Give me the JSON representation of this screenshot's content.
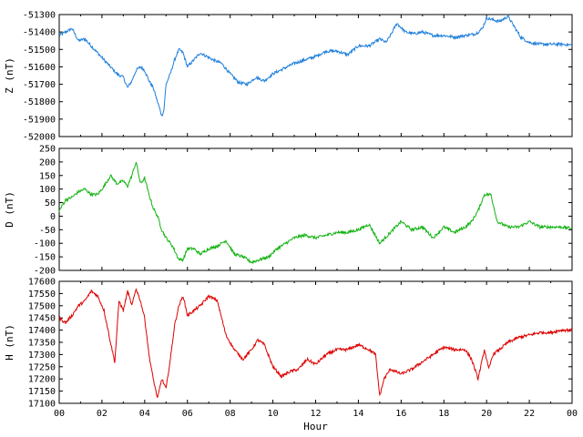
{
  "chart_data": [
    {
      "type": "line",
      "ylabel": "Z (nT)",
      "ylim": [
        -52000,
        -51300
      ],
      "yticks": [
        -51300,
        -51400,
        -51500,
        -51600,
        -51700,
        -51800,
        -51900,
        -52000
      ],
      "color": "#1e7fdc",
      "series": [
        {
          "x": [
            0,
            0.3,
            0.6,
            0.9,
            1.2,
            1.5,
            1.8,
            2.1,
            2.4,
            2.7,
            3.0,
            3.2,
            3.4,
            3.6,
            3.8,
            4.0,
            4.2,
            4.4,
            4.6,
            4.8,
            4.9,
            5.0,
            5.2,
            5.4,
            5.6,
            5.8,
            6.0,
            6.3,
            6.6,
            6.9,
            7.2,
            7.6,
            8.0,
            8.4,
            8.8,
            9.2,
            9.6,
            10.0,
            10.5,
            11.0,
            11.5,
            12.0,
            12.5,
            13.0,
            13.5,
            14.0,
            14.5,
            15.0,
            15.3,
            15.5,
            15.8,
            16.2,
            16.6,
            17.0,
            17.5,
            18.0,
            18.5,
            19.0,
            19.5,
            19.8,
            20.0,
            20.3,
            20.6,
            21.0,
            21.3,
            21.6,
            22.0,
            22.5,
            23.0,
            23.5,
            24.0
          ],
          "y": [
            -51420,
            -51400,
            -51380,
            -51450,
            -51440,
            -51480,
            -51520,
            -51560,
            -51600,
            -51640,
            -51660,
            -51720,
            -51680,
            -51620,
            -51600,
            -51620,
            -51680,
            -51720,
            -51800,
            -51880,
            -51850,
            -51700,
            -51640,
            -51560,
            -51500,
            -51520,
            -51600,
            -51560,
            -51520,
            -51540,
            -51560,
            -51580,
            -51640,
            -51690,
            -51700,
            -51660,
            -51680,
            -51640,
            -51610,
            -51580,
            -51560,
            -51540,
            -51510,
            -51510,
            -51530,
            -51480,
            -51480,
            -51440,
            -51460,
            -51420,
            -51350,
            -51400,
            -51410,
            -51400,
            -51420,
            -51420,
            -51430,
            -51420,
            -51410,
            -51380,
            -51320,
            -51330,
            -51340,
            -51310,
            -51370,
            -51430,
            -51460,
            -51470,
            -51470,
            -51470,
            -51475
          ]
        }
      ]
    },
    {
      "type": "line",
      "ylabel": "D (nT)",
      "ylim": [
        -200,
        250
      ],
      "yticks": [
        250,
        200,
        150,
        100,
        50,
        0,
        -50,
        -100,
        -150,
        -200
      ],
      "color": "#12b312",
      "series": [
        {
          "x": [
            0,
            0.3,
            0.6,
            0.9,
            1.2,
            1.5,
            1.8,
            2.1,
            2.4,
            2.7,
            3.0,
            3.2,
            3.4,
            3.6,
            3.8,
            4.0,
            4.2,
            4.4,
            4.6,
            4.8,
            5.0,
            5.3,
            5.6,
            5.8,
            6.0,
            6.3,
            6.6,
            7.0,
            7.4,
            7.8,
            8.2,
            8.6,
            9.0,
            9.4,
            9.8,
            10.2,
            10.6,
            11.0,
            11.5,
            12.0,
            12.5,
            13.0,
            13.5,
            14.0,
            14.5,
            15.0,
            15.5,
            16.0,
            16.5,
            17.0,
            17.5,
            18.0,
            18.5,
            19.0,
            19.3,
            19.6,
            19.9,
            20.2,
            20.5,
            21.0,
            21.5,
            22.0,
            22.5,
            23.0,
            23.5,
            24.0
          ],
          "y": [
            20,
            60,
            70,
            90,
            100,
            80,
            80,
            110,
            150,
            120,
            130,
            110,
            150,
            200,
            120,
            140,
            80,
            30,
            0,
            -50,
            -80,
            -110,
            -160,
            -160,
            -120,
            -120,
            -140,
            -120,
            -110,
            -90,
            -140,
            -150,
            -170,
            -160,
            -150,
            -120,
            -100,
            -80,
            -70,
            -80,
            -70,
            -60,
            -60,
            -50,
            -30,
            -100,
            -60,
            -20,
            -50,
            -40,
            -80,
            -40,
            -60,
            -40,
            -20,
            20,
            80,
            80,
            -20,
            -40,
            -40,
            -20,
            -40,
            -40,
            -40,
            -45
          ]
        }
      ]
    },
    {
      "type": "line",
      "ylabel": "H (nT)",
      "xlabel": "Hour",
      "ylim": [
        17100,
        17600
      ],
      "yticks": [
        17600,
        17550,
        17500,
        17450,
        17400,
        17350,
        17300,
        17250,
        17200,
        17150,
        17100
      ],
      "xticks": [
        "00",
        "02",
        "04",
        "06",
        "08",
        "10",
        "12",
        "14",
        "16",
        "18",
        "20",
        "22",
        "00"
      ],
      "color": "#dd0000",
      "series": [
        {
          "x": [
            0,
            0.3,
            0.6,
            0.9,
            1.2,
            1.5,
            1.8,
            2.1,
            2.4,
            2.6,
            2.8,
            3.0,
            3.2,
            3.4,
            3.6,
            3.8,
            4.0,
            4.2,
            4.4,
            4.6,
            4.8,
            5.0,
            5.2,
            5.4,
            5.6,
            5.8,
            6.0,
            6.3,
            6.6,
            7.0,
            7.4,
            7.8,
            8.2,
            8.6,
            9.0,
            9.3,
            9.6,
            10.0,
            10.4,
            10.8,
            11.2,
            11.6,
            12.0,
            12.5,
            13.0,
            13.5,
            14.0,
            14.5,
            14.8,
            15.0,
            15.2,
            15.5,
            16.0,
            16.5,
            17.0,
            17.5,
            18.0,
            18.5,
            19.0,
            19.3,
            19.6,
            19.9,
            20.1,
            20.3,
            20.6,
            21.0,
            21.5,
            22.0,
            22.5,
            23.0,
            23.5,
            24.0
          ],
          "y": [
            17450,
            17430,
            17460,
            17500,
            17520,
            17560,
            17540,
            17480,
            17350,
            17270,
            17520,
            17480,
            17560,
            17500,
            17570,
            17520,
            17450,
            17300,
            17200,
            17120,
            17200,
            17160,
            17280,
            17420,
            17500,
            17540,
            17460,
            17480,
            17500,
            17540,
            17520,
            17380,
            17320,
            17280,
            17320,
            17360,
            17340,
            17250,
            17210,
            17230,
            17240,
            17280,
            17260,
            17300,
            17320,
            17320,
            17340,
            17320,
            17300,
            17130,
            17200,
            17240,
            17220,
            17240,
            17270,
            17300,
            17330,
            17320,
            17320,
            17280,
            17200,
            17320,
            17240,
            17300,
            17320,
            17350,
            17370,
            17380,
            17390,
            17390,
            17400,
            17400
          ]
        }
      ]
    }
  ]
}
